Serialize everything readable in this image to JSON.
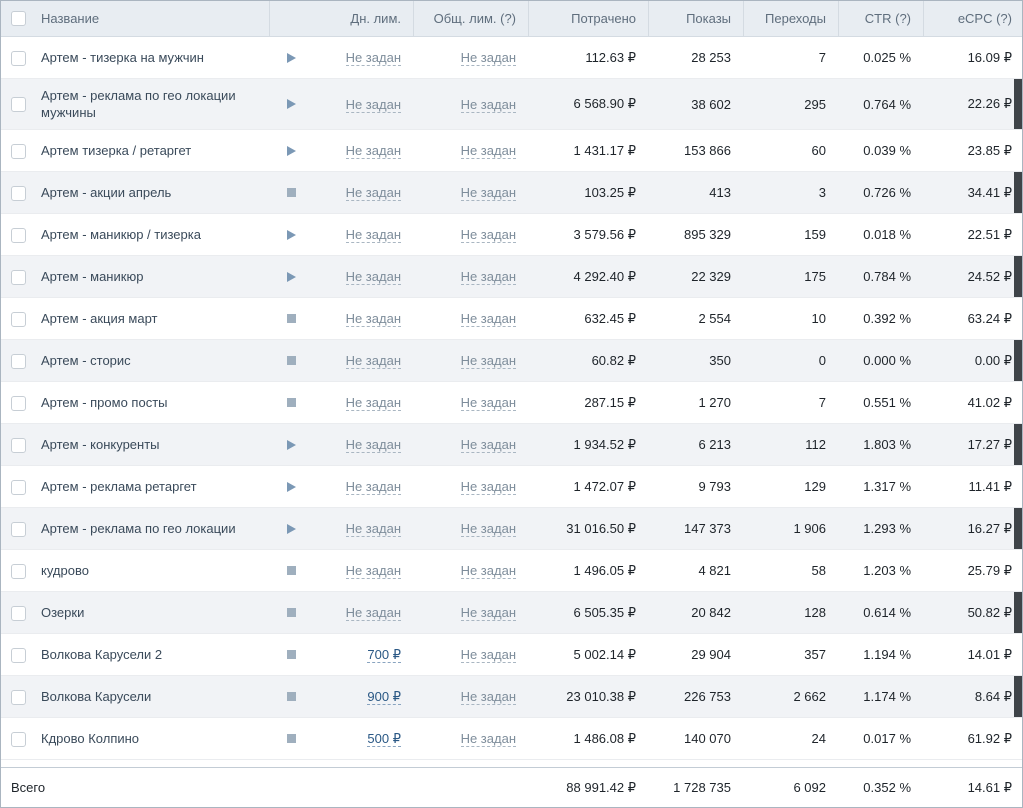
{
  "colors": {
    "header_bg": "#e8edf2",
    "stripe_bg": "#f1f3f6",
    "link_blue": "#2a5885",
    "muted_limit_text": "#7e8d9b",
    "play_icon": "#7b98b5",
    "stop_icon": "#9fafbe",
    "edge_mark": "#3f4449"
  },
  "header": {
    "columns": [
      {
        "label": "Название"
      },
      {
        "label": "Дн. лим."
      },
      {
        "label": "Общ. лим. (?)"
      },
      {
        "label": "Потрачено"
      },
      {
        "label": "Показы"
      },
      {
        "label": "Переходы"
      },
      {
        "label": "CTR (?)"
      },
      {
        "label": "eCPC (?)"
      }
    ]
  },
  "rows": [
    {
      "name": "Артем - тизерка на мужчин",
      "status": "running",
      "daily_limit": "Не задан",
      "daily_limit_set": false,
      "total_limit": "Не задан",
      "spent": "112.63 ₽",
      "impressions": "28 253",
      "clicks": "7",
      "ctr": "0.025 %",
      "ecpc": "16.09 ₽"
    },
    {
      "name": "Артем - реклама по гео локации мужчины",
      "status": "running",
      "daily_limit": "Не задан",
      "daily_limit_set": false,
      "total_limit": "Не задан",
      "spent": "6 568.90 ₽",
      "impressions": "38 602",
      "clicks": "295",
      "ctr": "0.764 %",
      "ecpc": "22.26 ₽"
    },
    {
      "name": "Артем тизерка / ретаргет",
      "status": "running",
      "daily_limit": "Не задан",
      "daily_limit_set": false,
      "total_limit": "Не задан",
      "spent": "1 431.17 ₽",
      "impressions": "153 866",
      "clicks": "60",
      "ctr": "0.039 %",
      "ecpc": "23.85 ₽"
    },
    {
      "name": "Артем - акции апрель",
      "status": "stopped",
      "daily_limit": "Не задан",
      "daily_limit_set": false,
      "total_limit": "Не задан",
      "spent": "103.25 ₽",
      "impressions": "413",
      "clicks": "3",
      "ctr": "0.726 %",
      "ecpc": "34.41 ₽"
    },
    {
      "name": "Артем - маникюр / тизерка",
      "status": "running",
      "daily_limit": "Не задан",
      "daily_limit_set": false,
      "total_limit": "Не задан",
      "spent": "3 579.56 ₽",
      "impressions": "895 329",
      "clicks": "159",
      "ctr": "0.018 %",
      "ecpc": "22.51 ₽"
    },
    {
      "name": "Артем - маникюр",
      "status": "running",
      "daily_limit": "Не задан",
      "daily_limit_set": false,
      "total_limit": "Не задан",
      "spent": "4 292.40 ₽",
      "impressions": "22 329",
      "clicks": "175",
      "ctr": "0.784 %",
      "ecpc": "24.52 ₽"
    },
    {
      "name": "Артем - акция март",
      "status": "stopped",
      "daily_limit": "Не задан",
      "daily_limit_set": false,
      "total_limit": "Не задан",
      "spent": "632.45 ₽",
      "impressions": "2 554",
      "clicks": "10",
      "ctr": "0.392 %",
      "ecpc": "63.24 ₽"
    },
    {
      "name": "Артем - сторис",
      "status": "stopped",
      "daily_limit": "Не задан",
      "daily_limit_set": false,
      "total_limit": "Не задан",
      "spent": "60.82 ₽",
      "impressions": "350",
      "clicks": "0",
      "ctr": "0.000 %",
      "ecpc": "0.00 ₽"
    },
    {
      "name": "Артем - промо посты",
      "status": "stopped",
      "daily_limit": "Не задан",
      "daily_limit_set": false,
      "total_limit": "Не задан",
      "spent": "287.15 ₽",
      "impressions": "1 270",
      "clicks": "7",
      "ctr": "0.551 %",
      "ecpc": "41.02 ₽"
    },
    {
      "name": "Артем - конкуренты",
      "status": "running",
      "daily_limit": "Не задан",
      "daily_limit_set": false,
      "total_limit": "Не задан",
      "spent": "1 934.52 ₽",
      "impressions": "6 213",
      "clicks": "112",
      "ctr": "1.803 %",
      "ecpc": "17.27 ₽"
    },
    {
      "name": "Артем - реклама ретаргет",
      "status": "running",
      "daily_limit": "Не задан",
      "daily_limit_set": false,
      "total_limit": "Не задан",
      "spent": "1 472.07 ₽",
      "impressions": "9 793",
      "clicks": "129",
      "ctr": "1.317 %",
      "ecpc": "11.41 ₽"
    },
    {
      "name": "Артем - реклама по гео локации",
      "status": "running",
      "daily_limit": "Не задан",
      "daily_limit_set": false,
      "total_limit": "Не задан",
      "spent": "31 016.50 ₽",
      "impressions": "147 373",
      "clicks": "1 906",
      "ctr": "1.293 %",
      "ecpc": "16.27 ₽"
    },
    {
      "name": "кудрово",
      "status": "stopped",
      "daily_limit": "Не задан",
      "daily_limit_set": false,
      "total_limit": "Не задан",
      "spent": "1 496.05 ₽",
      "impressions": "4 821",
      "clicks": "58",
      "ctr": "1.203 %",
      "ecpc": "25.79 ₽"
    },
    {
      "name": "Озерки",
      "status": "stopped",
      "daily_limit": "Не задан",
      "daily_limit_set": false,
      "total_limit": "Не задан",
      "spent": "6 505.35 ₽",
      "impressions": "20 842",
      "clicks": "128",
      "ctr": "0.614 %",
      "ecpc": "50.82 ₽"
    },
    {
      "name": "Волкова Карусели 2",
      "status": "stopped",
      "daily_limit": "700 ₽",
      "daily_limit_set": true,
      "total_limit": "Не задан",
      "spent": "5 002.14 ₽",
      "impressions": "29 904",
      "clicks": "357",
      "ctr": "1.194 %",
      "ecpc": "14.01 ₽"
    },
    {
      "name": "Волкова Карусели",
      "status": "stopped",
      "daily_limit": "900 ₽",
      "daily_limit_set": true,
      "total_limit": "Не задан",
      "spent": "23 010.38 ₽",
      "impressions": "226 753",
      "clicks": "2 662",
      "ctr": "1.174 %",
      "ecpc": "8.64 ₽"
    },
    {
      "name": "Кдрово Колпино",
      "status": "stopped",
      "daily_limit": "500 ₽",
      "daily_limit_set": true,
      "total_limit": "Не задан",
      "spent": "1 486.08 ₽",
      "impressions": "140 070",
      "clicks": "24",
      "ctr": "0.017 %",
      "ecpc": "61.92 ₽"
    }
  ],
  "footer": {
    "label": "Всего",
    "spent": "88 991.42 ₽",
    "impressions": "1 728 735",
    "clicks": "6 092",
    "ctr": "0.352 %",
    "ecpc": "14.61 ₽"
  }
}
